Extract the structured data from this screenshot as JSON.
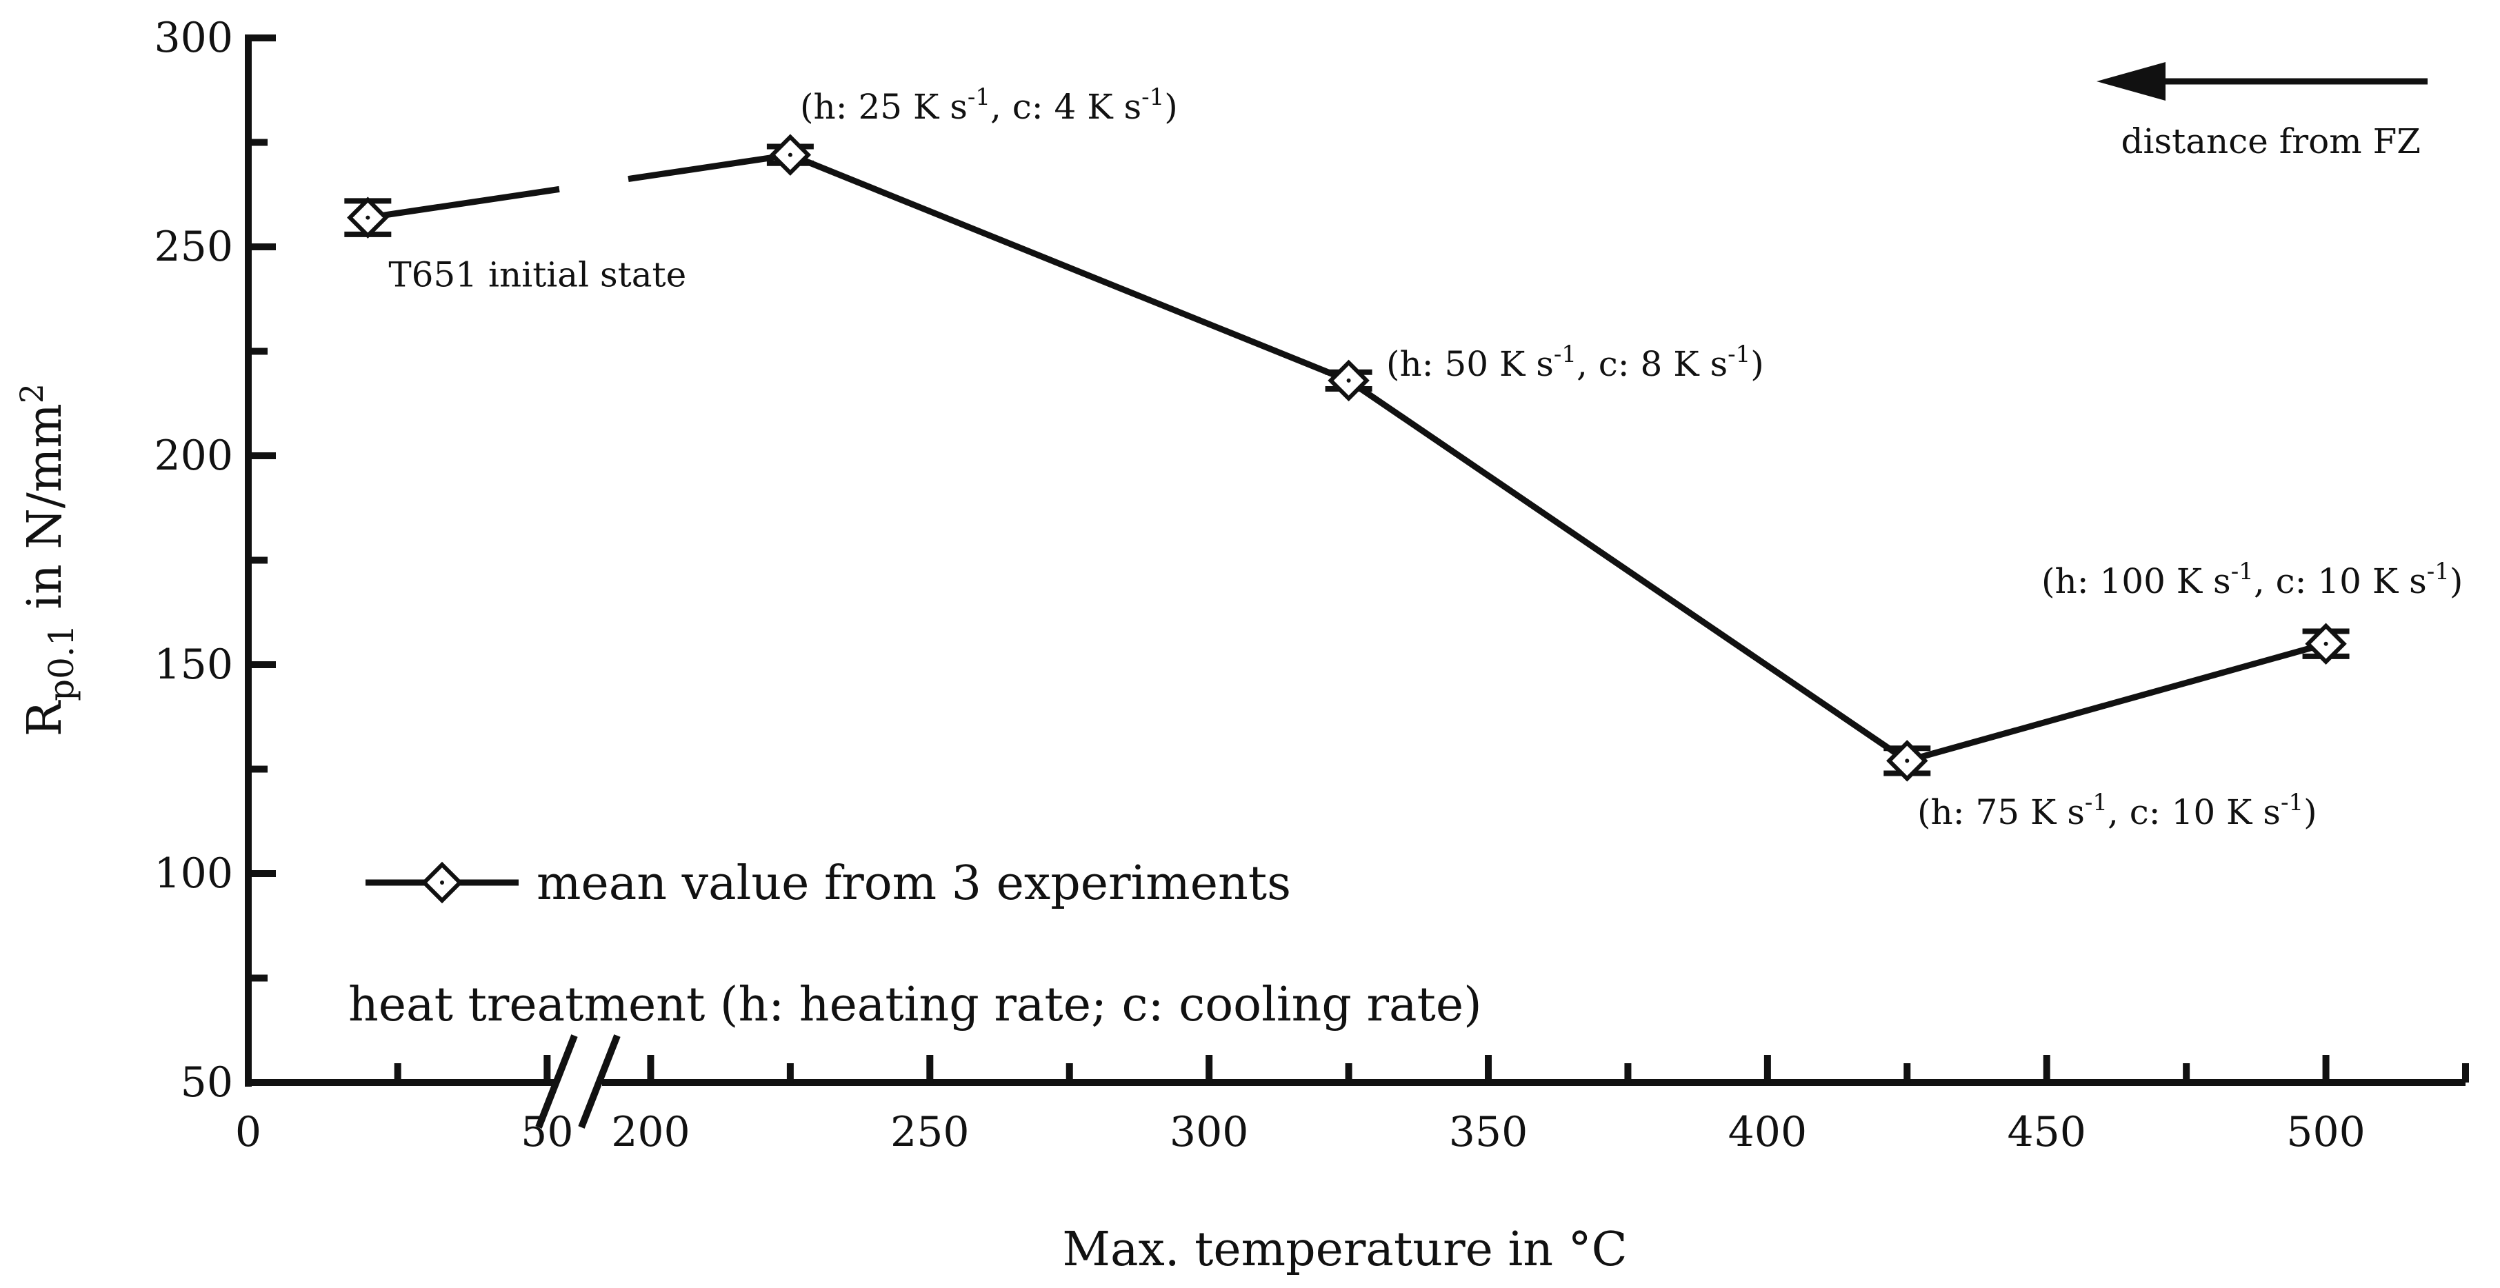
{
  "chart_data": {
    "type": "line",
    "title": "",
    "xlabel": "Max. temperature in °C",
    "ylabel": "R",
    "ylabel_sub": "p0.1",
    "ylabel_rest": " in N/mm",
    "ylabel_sup": "2",
    "ylim": [
      50,
      300
    ],
    "yticks": [
      50,
      100,
      150,
      200,
      250,
      300
    ],
    "x_segment_left": [
      0,
      60
    ],
    "x_segment_right": [
      185,
      525
    ],
    "x_break_between": [
      60,
      185
    ],
    "xticks_left": [
      "0",
      "50"
    ],
    "xticks_right": [
      "200",
      "250",
      "300",
      "350",
      "400",
      "450",
      "500"
    ],
    "legend_position": "bottom-left",
    "series": [
      {
        "name": "mean value from 3 experiments",
        "marker": "diamond",
        "points": [
          {
            "x": 20,
            "y": 257,
            "err": 4
          },
          {
            "x": 225,
            "y": 272,
            "err": 2
          },
          {
            "x": 325,
            "y": 218,
            "err": 2
          },
          {
            "x": 425,
            "y": 127,
            "err": 3
          },
          {
            "x": 500,
            "y": 155,
            "err": 3
          }
        ]
      }
    ],
    "annotations": [
      {
        "name": "T651 initial state",
        "parts": [
          {
            "t": "T651 initial state"
          }
        ]
      },
      {
        "name": "(h: 25, c: 4)",
        "parts": [
          {
            "t": "(h: 25 K s"
          },
          {
            "t": "-1",
            "sup": true
          },
          {
            "t": ", c: 4 K s"
          },
          {
            "t": "-1",
            "sup": true
          },
          {
            "t": ")"
          }
        ]
      },
      {
        "name": "(h: 50, c: 8)",
        "parts": [
          {
            "t": "(h: 50 K s"
          },
          {
            "t": "-1",
            "sup": true
          },
          {
            "t": ", c: 8 K s"
          },
          {
            "t": "-1",
            "sup": true
          },
          {
            "t": ")"
          }
        ]
      },
      {
        "name": "(h: 75, c: 10)",
        "parts": [
          {
            "t": "(h: 75 K s"
          },
          {
            "t": "-1",
            "sup": true
          },
          {
            "t": ", c: 10 K s"
          },
          {
            "t": "-1",
            "sup": true
          },
          {
            "t": ")"
          }
        ]
      },
      {
        "name": "(h: 100, c: 10)",
        "parts": [
          {
            "t": "(h: 100 K s"
          },
          {
            "t": "-1",
            "sup": true
          },
          {
            "t": ", c: 10 K s"
          },
          {
            "t": "-1",
            "sup": true
          },
          {
            "t": ")"
          }
        ]
      }
    ],
    "arrow_label": "distance from FZ",
    "heat_treatment_label": "heat treatment (h: heating rate; c: cooling rate)",
    "legend_label": "mean value from 3 experiments"
  }
}
